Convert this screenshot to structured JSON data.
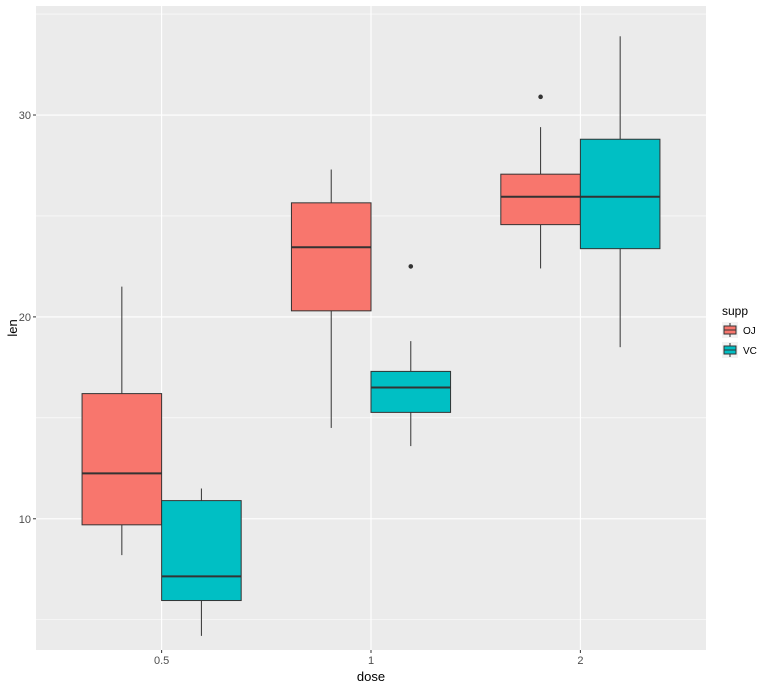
{
  "chart_data": {
    "type": "box",
    "xlabel": "dose",
    "ylabel": "len",
    "x_categories": [
      "0.5",
      "1",
      "2"
    ],
    "y_ticks": [
      10,
      20,
      30
    ],
    "ylim": [
      3.5,
      35.4
    ],
    "grid": true,
    "legend": {
      "title": "supp",
      "position": "right",
      "entries": [
        {
          "label": "OJ",
          "color": "#F8766D"
        },
        {
          "label": "VC",
          "color": "#00BFC4"
        }
      ]
    },
    "series": [
      {
        "name": "OJ",
        "color": "#F8766D",
        "boxes": [
          {
            "x": "0.5",
            "min": 8.2,
            "q1": 9.7,
            "median": 12.25,
            "q3": 16.2,
            "max": 21.5,
            "outliers": []
          },
          {
            "x": "1",
            "min": 14.5,
            "q1": 20.3,
            "median": 23.45,
            "q3": 25.65,
            "max": 27.3,
            "outliers": []
          },
          {
            "x": "2",
            "min": 22.4,
            "q1": 24.57,
            "median": 25.95,
            "q3": 27.07,
            "max": 29.4,
            "outliers": [
              30.9
            ]
          }
        ]
      },
      {
        "name": "VC",
        "color": "#00BFC4",
        "boxes": [
          {
            "x": "0.5",
            "min": 4.2,
            "q1": 5.95,
            "median": 7.15,
            "q3": 10.9,
            "max": 11.5,
            "outliers": []
          },
          {
            "x": "1",
            "min": 13.6,
            "q1": 15.27,
            "median": 16.5,
            "q3": 17.3,
            "max": 18.8,
            "outliers": [
              22.5
            ]
          },
          {
            "x": "2",
            "min": 18.5,
            "q1": 23.38,
            "median": 25.95,
            "q3": 28.8,
            "max": 33.9,
            "outliers": []
          }
        ]
      }
    ]
  }
}
